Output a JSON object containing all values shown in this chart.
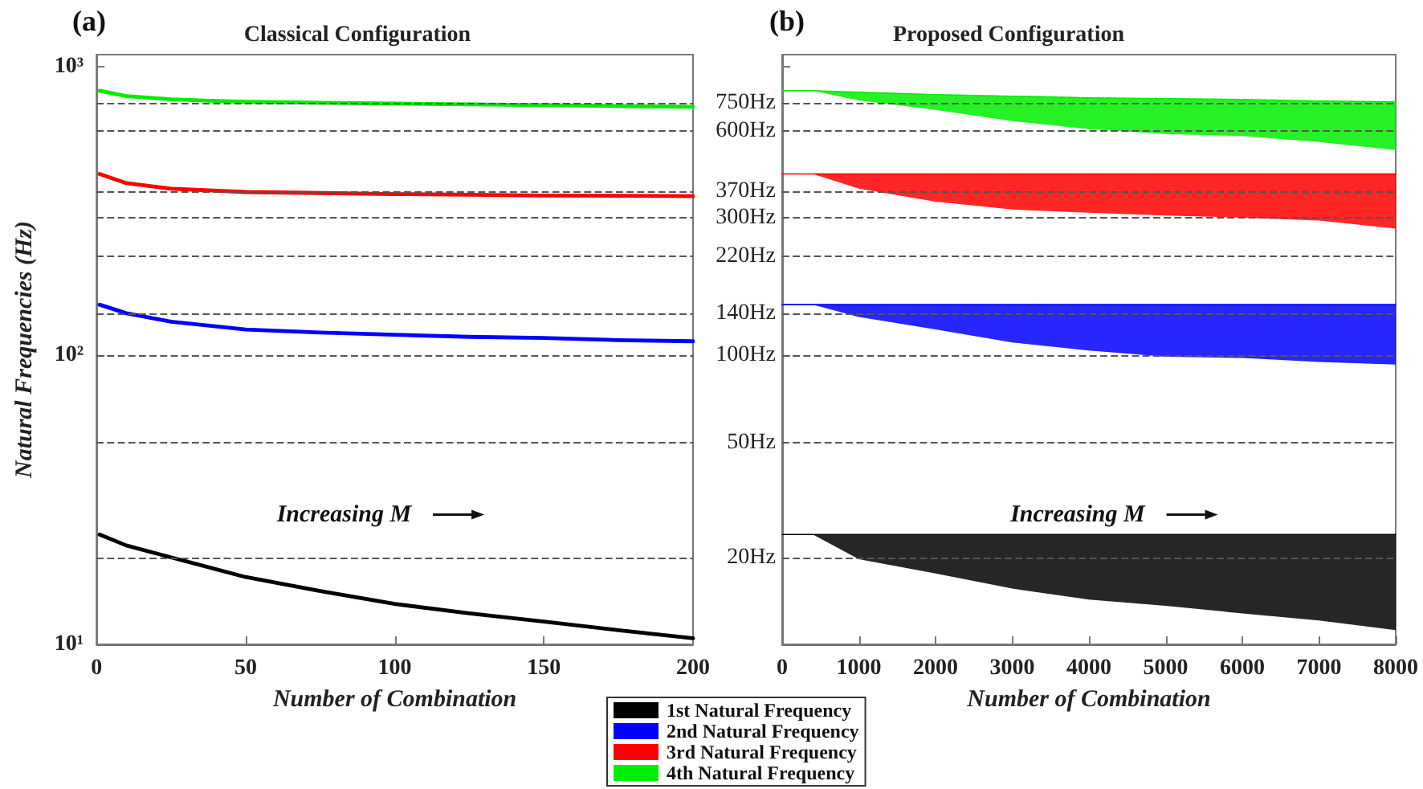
{
  "chart_data": [
    {
      "type": "line",
      "title": "Classical Configuration",
      "xlabel": "Number of Combination",
      "ylabel": "Natural Frequencies (Hz)",
      "annotations": [
        "(a)",
        "Increasing M"
      ],
      "log": "y",
      "marker": "none",
      "x": [
        1,
        10,
        25,
        50,
        75,
        100,
        125,
        150,
        175,
        200
      ],
      "xlim": [
        0,
        200
      ],
      "xticks": [
        0,
        50,
        100,
        150,
        200
      ],
      "ylim": [
        10,
        1100
      ],
      "yticks": [
        {
          "value": 10,
          "label": "10¹"
        },
        {
          "value": 100,
          "label": "10²"
        },
        {
          "value": 1000,
          "label": "10³"
        }
      ],
      "series": [
        {
          "color": "#000000",
          "values": [
            24,
            22,
            20,
            17.1,
            15.3,
            13.8,
            12.8,
            12,
            11.2,
            10.5
          ]
        },
        {
          "color": "#0000ff",
          "values": [
            150,
            140,
            131,
            123,
            120,
            118,
            116,
            115,
            113,
            112
          ]
        },
        {
          "color": "#ff0000",
          "values": [
            425,
            395,
            378,
            368,
            365,
            362,
            360,
            358,
            357,
            356
          ]
        },
        {
          "color": "#00ee00",
          "values": [
            825,
            790,
            770,
            755,
            750,
            745,
            740,
            735,
            730,
            726
          ]
        }
      ],
      "ref_lines": [
        {
          "axis": "y",
          "value": 750,
          "color": "#555555",
          "line_style": "dashed"
        },
        {
          "axis": "y",
          "value": 600,
          "color": "#555555",
          "line_style": "dashed"
        },
        {
          "axis": "y",
          "value": 370,
          "color": "#555555",
          "line_style": "dashed"
        },
        {
          "axis": "y",
          "value": 300,
          "color": "#555555",
          "line_style": "dashed"
        },
        {
          "axis": "y",
          "value": 220,
          "color": "#555555",
          "line_style": "dashed"
        },
        {
          "axis": "y",
          "value": 140,
          "color": "#555555",
          "line_style": "dashed"
        },
        {
          "axis": "y",
          "value": 100,
          "color": "#555555",
          "line_style": "dashed"
        },
        {
          "axis": "y",
          "value": 50,
          "color": "#555555",
          "line_style": "dashed"
        },
        {
          "axis": "y",
          "value": 20,
          "color": "#555555",
          "line_style": "dashed"
        }
      ]
    },
    {
      "type": "line",
      "title": "Proposed Configuration",
      "xlabel": "Number of Combination",
      "annotations": [
        "(b)",
        "Increasing M"
      ],
      "log": "y",
      "marker": "none",
      "legend": "bottom left",
      "tick_labels": "x",
      "x": [
        0,
        400,
        1000,
        2000,
        3000,
        4000,
        5000,
        6000,
        7000,
        8000
      ],
      "xlim": [
        0,
        8000
      ],
      "xticks": [
        0,
        1000,
        2000,
        3000,
        4000,
        5000,
        6000,
        7000,
        8000
      ],
      "ylim": [
        10,
        1100
      ],
      "yticks": [
        {
          "value": 10,
          "label": null
        },
        {
          "value": 100,
          "label": null
        },
        {
          "value": 1000,
          "label": null
        }
      ],
      "series": [
        {
          "name": "1st Natural Frequency",
          "color": "#000000",
          "values": [
            24,
            24,
            24,
            24,
            24,
            24,
            24,
            24,
            24,
            24
          ],
          "upper": [
            24,
            24,
            24,
            24,
            24,
            24,
            24,
            24,
            24,
            24
          ],
          "lower": [
            24,
            24,
            19.7,
            17.6,
            15.6,
            14.3,
            13.6,
            12.8,
            12.1,
            11.2
          ]
        },
        {
          "name": "2nd Natural Frequency",
          "color": "#0000ff",
          "values": [
            150,
            150,
            150,
            150,
            150,
            150,
            150,
            150,
            150,
            150
          ],
          "upper": [
            150,
            150,
            150,
            150,
            150,
            150,
            150,
            150,
            150,
            150
          ],
          "lower": [
            150,
            150,
            136,
            123,
            111,
            104,
            99,
            98,
            95,
            93
          ]
        },
        {
          "name": "3rd Natural Frequency",
          "color": "#ff0000",
          "values": [
            425,
            425,
            425,
            425,
            425,
            425,
            425,
            425,
            425,
            425
          ],
          "upper": [
            425,
            425,
            425,
            425,
            425,
            425,
            425,
            425,
            425,
            425
          ],
          "lower": [
            425,
            425,
            378,
            341,
            320,
            312,
            305,
            300,
            293,
            275
          ]
        },
        {
          "name": "4th Natural Frequency",
          "color": "#00ee00",
          "values": [
            825,
            825,
            815,
            800,
            790,
            780,
            775,
            770,
            760,
            755
          ],
          "upper": [
            825,
            825,
            815,
            800,
            790,
            780,
            775,
            770,
            760,
            755
          ],
          "lower": [
            825,
            825,
            764,
            708,
            647,
            607,
            584,
            575,
            548,
            514
          ]
        }
      ],
      "ref_lines": [
        {
          "axis": "y",
          "value": 750,
          "label": "750Hz",
          "color": "#555555",
          "line_style": "dashed"
        },
        {
          "axis": "y",
          "value": 600,
          "label": "600Hz",
          "color": "#555555",
          "line_style": "dashed"
        },
        {
          "axis": "y",
          "value": 370,
          "label": "370Hz",
          "color": "#555555",
          "line_style": "dashed"
        },
        {
          "axis": "y",
          "value": 300,
          "label": "300Hz",
          "color": "#555555",
          "line_style": "dashed"
        },
        {
          "axis": "y",
          "value": 220,
          "label": "220Hz",
          "color": "#555555",
          "line_style": "dashed"
        },
        {
          "axis": "y",
          "value": 140,
          "label": "140Hz",
          "color": "#555555",
          "line_style": "dashed"
        },
        {
          "axis": "y",
          "value": 100,
          "label": "100Hz",
          "color": "#555555",
          "line_style": "dashed"
        },
        {
          "axis": "y",
          "value": 50,
          "label": "50Hz",
          "color": "#555555",
          "line_style": "dashed"
        },
        {
          "axis": "y",
          "value": 20,
          "label": "20Hz",
          "color": "#555555",
          "line_style": "dashed"
        }
      ]
    }
  ]
}
